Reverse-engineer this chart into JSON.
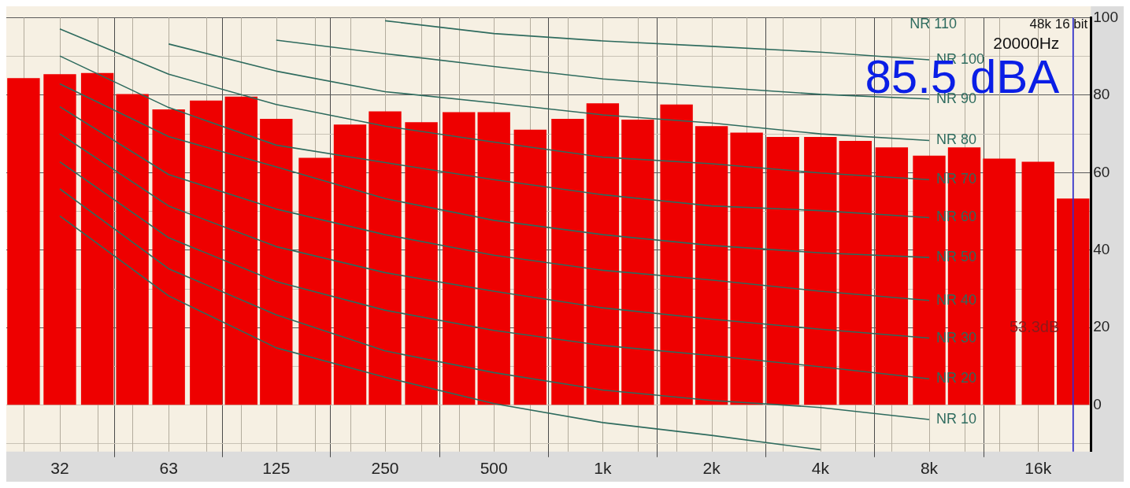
{
  "chart_data": {
    "type": "bar",
    "x": [
      25,
      31.5,
      40,
      50,
      63,
      80,
      100,
      125,
      160,
      200,
      250,
      315,
      400,
      500,
      630,
      800,
      1000,
      1250,
      1600,
      2000,
      2500,
      3150,
      4000,
      5000,
      6300,
      8000,
      10000,
      12500,
      16000,
      20000
    ],
    "series": [
      {
        "color": "#ee0000",
        "values": [
          84.4,
          85.4,
          85.7,
          80.3,
          76.3,
          78.6,
          79.6,
          73.9,
          63.8,
          72.4,
          75.8,
          73.0,
          75.6,
          75.6,
          71.1,
          73.9,
          77.9,
          73.7,
          77.6,
          72.0,
          70.3,
          69.2,
          69.2,
          68.2,
          66.5,
          64.4,
          66.5,
          63.6,
          62.8,
          53.3
        ]
      },
      {
        "type": "line",
        "name": "NR 100",
        "color": "#2e6b5e",
        "x": [
          250,
          500,
          1000,
          2000,
          4000,
          8000
        ],
        "values": [
          99.2,
          95.9,
          94.0,
          92.6,
          91.1,
          89.1
        ]
      },
      {
        "type": "line",
        "name": "NR 90",
        "color": "#2e6b5e",
        "x": [
          125,
          250,
          500,
          1000,
          2000,
          4000,
          8000
        ],
        "values": [
          94.2,
          90.7,
          87.4,
          84.2,
          82.1,
          80.2,
          79.0
        ]
      },
      {
        "type": "line",
        "name": "NR 80",
        "color": "#2e6b5e",
        "x": [
          63,
          125,
          250,
          500,
          1000,
          2000,
          4000,
          8000
        ],
        "values": [
          93.2,
          86.2,
          80.9,
          78.0,
          74.9,
          72.8,
          70.0,
          68.3
        ]
      },
      {
        "type": "line",
        "name": "NR 70",
        "color": "#2e6b5e",
        "x": [
          31.5,
          63,
          125,
          250,
          500,
          1000,
          2000,
          4000,
          8000
        ],
        "values": [
          97.1,
          85.4,
          77.6,
          72.0,
          67.9,
          64.0,
          62.3,
          59.9,
          58.2
        ]
      },
      {
        "type": "line",
        "name": "NR 60",
        "color": "#2e6b5e",
        "x": [
          31.5,
          63,
          125,
          250,
          500,
          1000,
          2000,
          4000,
          8000
        ],
        "values": [
          90.1,
          76.8,
          67.1,
          62.6,
          58.2,
          54.3,
          51.4,
          50.2,
          48.4
        ]
      },
      {
        "type": "line",
        "name": "NR 50",
        "color": "#2e6b5e",
        "x": [
          31.5,
          63,
          125,
          250,
          500,
          1000,
          2000,
          4000,
          8000
        ],
        "values": [
          82.9,
          69.3,
          61.5,
          53.3,
          47.7,
          44.0,
          41.2,
          39.3,
          38.1
        ]
      },
      {
        "type": "line",
        "name": "NR 40",
        "color": "#2e6b5e",
        "x": [
          31.5,
          63,
          125,
          250,
          500,
          1000,
          2000,
          4000,
          8000
        ],
        "values": [
          77.0,
          59.5,
          50.6,
          44.0,
          38.7,
          34.8,
          32.3,
          29.4,
          27.0
        ]
      },
      {
        "type": "line",
        "name": "NR 30",
        "color": "#2e6b5e",
        "x": [
          31.5,
          63,
          125,
          250,
          500,
          1000,
          2000,
          4000,
          8000
        ],
        "values": [
          70.0,
          51.4,
          40.9,
          34.2,
          29.4,
          25.1,
          22.2,
          19.6,
          17.3
        ]
      },
      {
        "type": "line",
        "name": "NR 20",
        "color": "#2e6b5e",
        "x": [
          31.5,
          63,
          125,
          250,
          500,
          1000,
          2000,
          4000,
          8000
        ],
        "values": [
          62.8,
          43.2,
          31.9,
          24.5,
          19.3,
          15.4,
          12.8,
          9.9,
          6.8
        ]
      },
      {
        "type": "line",
        "name": "NR 10",
        "color": "#2e6b5e",
        "x": [
          31.5,
          63,
          125,
          250,
          500,
          1000,
          2000,
          4000,
          8000
        ],
        "values": [
          55.8,
          35.2,
          23.3,
          14.0,
          8.4,
          3.9,
          1.2,
          -0.6,
          -3.7
        ]
      },
      {
        "type": "line",
        "color": "#2e6b5e",
        "x": [
          31.5,
          63,
          125,
          250,
          500,
          1000,
          2000,
          4000
        ],
        "values": [
          48.8,
          28.2,
          14.8,
          7.2,
          0.4,
          -4.5,
          -7.8,
          -11.5
        ]
      }
    ],
    "log": "x",
    "xlim": [
      22.4,
      22400
    ],
    "xticks": [
      {
        "value": 31.5,
        "label": "32"
      },
      63,
      125,
      250,
      500,
      {
        "value": 1000,
        "label": "1k"
      },
      {
        "value": 2000,
        "label": "2k"
      },
      {
        "value": 4000,
        "label": "4k"
      },
      {
        "value": 8000,
        "label": "8k"
      },
      {
        "value": 16000,
        "label": "16k"
      }
    ],
    "ylim": [
      -12,
      100
    ],
    "yticks": [
      {
        "value": -10,
        "label": null
      },
      0,
      {
        "value": 10,
        "label": null
      },
      20,
      {
        "value": 30,
        "label": null
      },
      40,
      {
        "value": 50,
        "label": null
      },
      60,
      {
        "value": 70,
        "label": null
      },
      80,
      {
        "value": 90,
        "label": null
      },
      100
    ],
    "grid": true,
    "legend": false,
    "ref_lines": [
      {
        "axis": "x",
        "value": 20000,
        "color": "#2a2ae0"
      }
    ],
    "annotations": [
      "48k 16 bit",
      "20000Hz",
      "85.5 dBA",
      "53.3dB",
      "NR 110"
    ]
  }
}
